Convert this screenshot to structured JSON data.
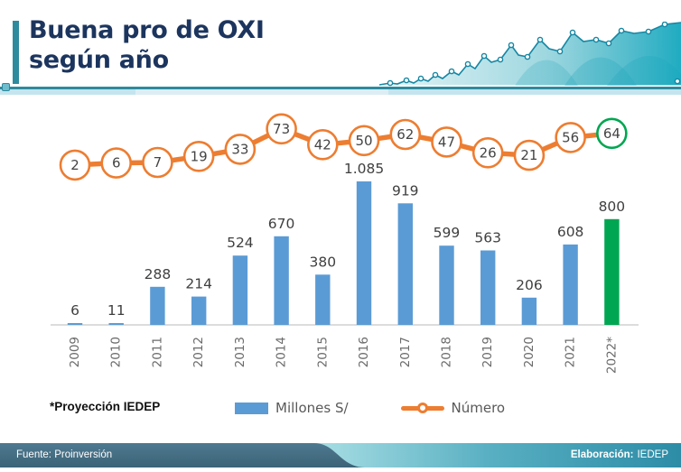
{
  "header": {
    "title_line1": "Buena pro de OXI",
    "title_line2": "según año"
  },
  "footnote": "*Proyección IEDEP",
  "legend": {
    "bar_label": "Millones S/",
    "line_label": "Número"
  },
  "footer": {
    "source": "Fuente: Proinversión",
    "elaboration_label": "Elaboración:",
    "elaboration_value": "IEDEP"
  },
  "colors": {
    "bar": "#5B9BD5",
    "bar_projection": "#00A651",
    "line": "#ED7D31",
    "line_last_marker": "#00A651",
    "accent_teal": "#2E8B9E",
    "title_navy": "#1C355E"
  },
  "chart_data": {
    "type": "bar",
    "subtype": "combo bar + line with circular data-point markers",
    "title": "Buena pro de OXI según año",
    "xlabel": "",
    "ylabel": "",
    "grid": false,
    "legend_position": "bottom",
    "categories": [
      "2009",
      "2010",
      "2011",
      "2012",
      "2013",
      "2014",
      "2015",
      "2016",
      "2017",
      "2018",
      "2019",
      "2020",
      "2021",
      "2022*"
    ],
    "series": [
      {
        "name": "Millones S/",
        "type": "bar",
        "color": "#5B9BD5",
        "values": [
          6,
          11,
          288,
          214,
          524,
          670,
          380,
          1085,
          919,
          599,
          563,
          206,
          608,
          800
        ],
        "value_labels": [
          "6",
          "11",
          "288",
          "214",
          "524",
          "670",
          "380",
          "1.085",
          "919",
          "599",
          "563",
          "206",
          "608",
          "800"
        ],
        "projection_index": 13,
        "projection_color": "#00A651"
      },
      {
        "name": "Número",
        "type": "line",
        "color": "#ED7D31",
        "values": [
          2,
          6,
          7,
          19,
          33,
          73,
          42,
          50,
          62,
          47,
          26,
          21,
          56,
          64
        ],
        "last_marker_color": "#00A651"
      }
    ],
    "notes": "2022* is a projection (Proyección IEDEP). Fuente: Proinversión. Elaboración: IEDEP."
  }
}
